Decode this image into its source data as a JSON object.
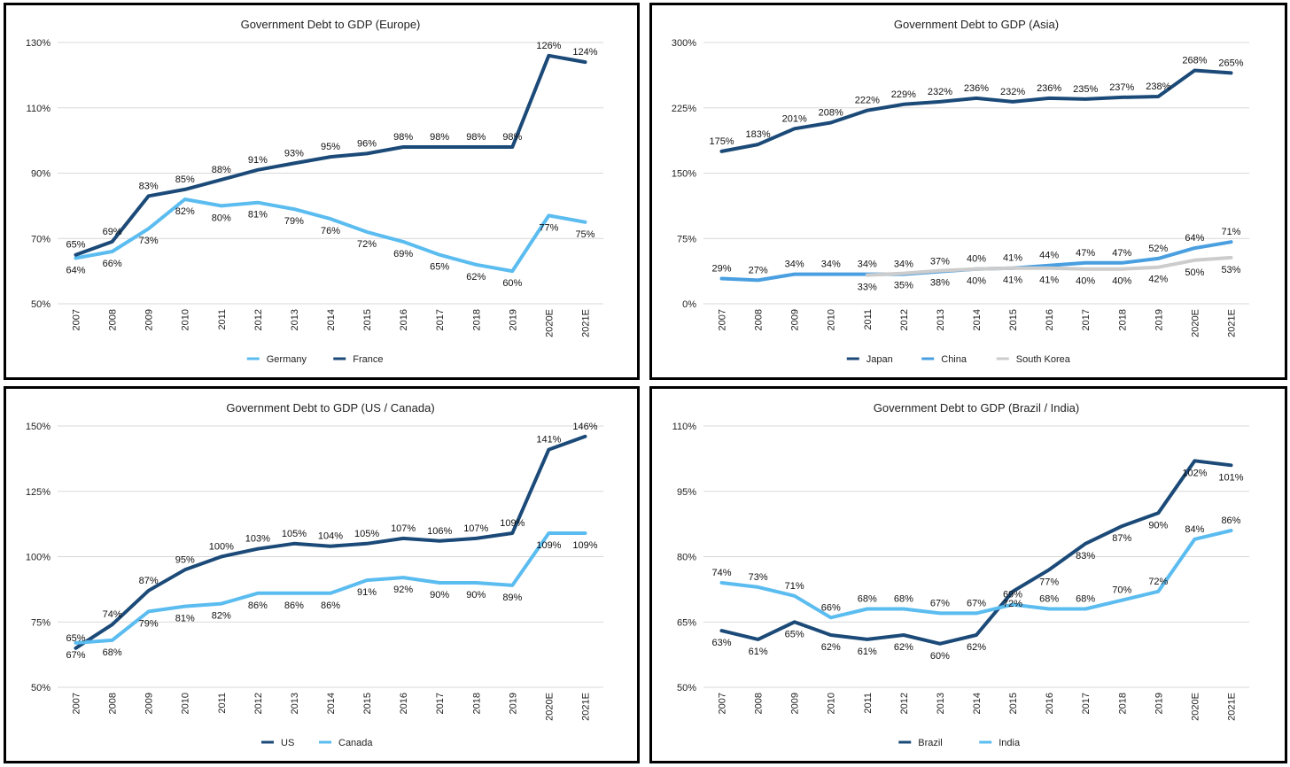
{
  "colors": {
    "dark": "#1b4a78",
    "light": "#5bbcf0",
    "gray": "#cccccc"
  },
  "chart_data": [
    {
      "type": "line",
      "title": "Government Debt to GDP (Europe)",
      "categories": [
        "2007",
        "2008",
        "2009",
        "2010",
        "2011",
        "2012",
        "2013",
        "2014",
        "2015",
        "2016",
        "2017",
        "2018",
        "2019",
        "2020E",
        "2021E"
      ],
      "ylim": [
        50,
        130
      ],
      "yticks": [
        50,
        70,
        90,
        110,
        130
      ],
      "ytick_labels": [
        "50%",
        "70%",
        "90%",
        "110%",
        "130%"
      ],
      "grid": true,
      "legend_placement": "bottom",
      "series": [
        {
          "name": "Germany",
          "color": "#5bbcf0",
          "values": [
            64,
            66,
            73,
            82,
            80,
            81,
            79,
            76,
            72,
            69,
            65,
            62,
            60,
            77,
            75
          ],
          "labels": [
            "64%",
            "66%",
            "73%",
            "82%",
            "80%",
            "81%",
            "79%",
            "76%",
            "72%",
            "69%",
            "65%",
            "62%",
            "60%",
            "77%",
            "75%"
          ]
        },
        {
          "name": "France",
          "color": "#1b4a78",
          "values": [
            65,
            69,
            83,
            85,
            88,
            91,
            93,
            95,
            96,
            98,
            98,
            98,
            98,
            126,
            124
          ],
          "labels": [
            "65%",
            "69%",
            "83%",
            "85%",
            "88%",
            "91%",
            "93%",
            "95%",
            "96%",
            "98%",
            "98%",
            "98%",
            "98%",
            "126%",
            "124%"
          ]
        }
      ]
    },
    {
      "type": "line",
      "title": "Government Debt to GDP (Asia)",
      "categories": [
        "2007",
        "2008",
        "2009",
        "2010",
        "2011",
        "2012",
        "2013",
        "2014",
        "2015",
        "2016",
        "2017",
        "2018",
        "2019",
        "2020E",
        "2021E"
      ],
      "ylim": [
        0,
        300
      ],
      "yticks": [
        0,
        75,
        150,
        225,
        300
      ],
      "ytick_labels": [
        "0%",
        "75%",
        "150%",
        "225%",
        "300%"
      ],
      "grid": true,
      "legend_placement": "bottom",
      "series": [
        {
          "name": "Japan",
          "color": "#1b4a78",
          "values": [
            175,
            183,
            201,
            208,
            222,
            229,
            232,
            236,
            232,
            236,
            235,
            237,
            238,
            268,
            265
          ],
          "labels": [
            "175%",
            "183%",
            "201%",
            "208%",
            "222%",
            "229%",
            "232%",
            "236%",
            "232%",
            "236%",
            "235%",
            "237%",
            "238%",
            "268%",
            "265%"
          ]
        },
        {
          "name": "China",
          "color": "#4a9fe0",
          "values": [
            29,
            27,
            34,
            34,
            34,
            34,
            37,
            40,
            41,
            44,
            47,
            47,
            52,
            64,
            71
          ],
          "labels": [
            "29%",
            "27%",
            "34%",
            "34%",
            "34%",
            "34%",
            "37%",
            "40%",
            "41%",
            "44%",
            "47%",
            "47%",
            "52%",
            "64%",
            "71%"
          ]
        },
        {
          "name": "South Korea",
          "color": "#cccccc",
          "values": [
            null,
            null,
            null,
            null,
            33,
            35,
            38,
            40,
            41,
            41,
            40,
            40,
            42,
            50,
            53
          ],
          "labels": [
            "",
            "",
            "",
            "",
            "33%",
            "35%",
            "38%",
            "40%",
            "41%",
            "41%",
            "40%",
            "40%",
            "42%",
            "50%",
            "53%"
          ]
        }
      ]
    },
    {
      "type": "line",
      "title": "Government Debt to GDP (US / Canada)",
      "categories": [
        "2007",
        "2008",
        "2009",
        "2010",
        "2011",
        "2012",
        "2013",
        "2014",
        "2015",
        "2016",
        "2017",
        "2018",
        "2019",
        "2020E",
        "2021E"
      ],
      "ylim": [
        50,
        150
      ],
      "yticks": [
        50,
        75,
        100,
        125,
        150
      ],
      "ytick_labels": [
        "50%",
        "75%",
        "100%",
        "125%",
        "150%"
      ],
      "grid": true,
      "legend_placement": "bottom",
      "series": [
        {
          "name": "US",
          "color": "#1b4a78",
          "values": [
            65,
            74,
            87,
            95,
            100,
            103,
            105,
            104,
            105,
            107,
            106,
            107,
            109,
            141,
            146
          ],
          "labels": [
            "65%",
            "74%",
            "87%",
            "95%",
            "100%",
            "103%",
            "105%",
            "104%",
            "105%",
            "107%",
            "106%",
            "107%",
            "109%",
            "141%",
            "146%"
          ]
        },
        {
          "name": "Canada",
          "color": "#5bbcf0",
          "values": [
            67,
            68,
            79,
            81,
            82,
            86,
            86,
            86,
            91,
            92,
            90,
            90,
            89,
            109,
            109
          ],
          "labels": [
            "67%",
            "68%",
            "79%",
            "81%",
            "82%",
            "86%",
            "86%",
            "86%",
            "91%",
            "92%",
            "90%",
            "90%",
            "89%",
            "109%",
            "109%"
          ]
        }
      ]
    },
    {
      "type": "line",
      "title": "Government Debt to GDP (Brazil / India)",
      "categories": [
        "2007",
        "2008",
        "2009",
        "2010",
        "2011",
        "2012",
        "2013",
        "2014",
        "2015",
        "2016",
        "2017",
        "2018",
        "2019",
        "2020E",
        "2021E"
      ],
      "ylim": [
        50,
        110
      ],
      "yticks": [
        50,
        65,
        80,
        95,
        110
      ],
      "ytick_labels": [
        "50%",
        "65%",
        "80%",
        "95%",
        "110%"
      ],
      "grid": true,
      "legend_placement": "bottom",
      "series": [
        {
          "name": "Brazil",
          "color": "#1b4a78",
          "values": [
            63,
            61,
            65,
            62,
            61,
            62,
            60,
            62,
            72,
            77,
            83,
            87,
            90,
            102,
            101
          ],
          "labels": [
            "63%",
            "61%",
            "65%",
            "62%",
            "61%",
            "62%",
            "60%",
            "62%",
            "72%",
            "77%",
            "83%",
            "87%",
            "90%",
            "102%",
            "101%"
          ]
        },
        {
          "name": "India",
          "color": "#5bbcf0",
          "values": [
            74,
            73,
            71,
            66,
            68,
            68,
            67,
            67,
            69,
            68,
            68,
            70,
            72,
            84,
            86
          ],
          "labels": [
            "74%",
            "73%",
            "71%",
            "66%",
            "68%",
            "68%",
            "67%",
            "67%",
            "69%",
            "68%",
            "68%",
            "70%",
            "72%",
            "84%",
            "86%"
          ]
        }
      ]
    }
  ]
}
